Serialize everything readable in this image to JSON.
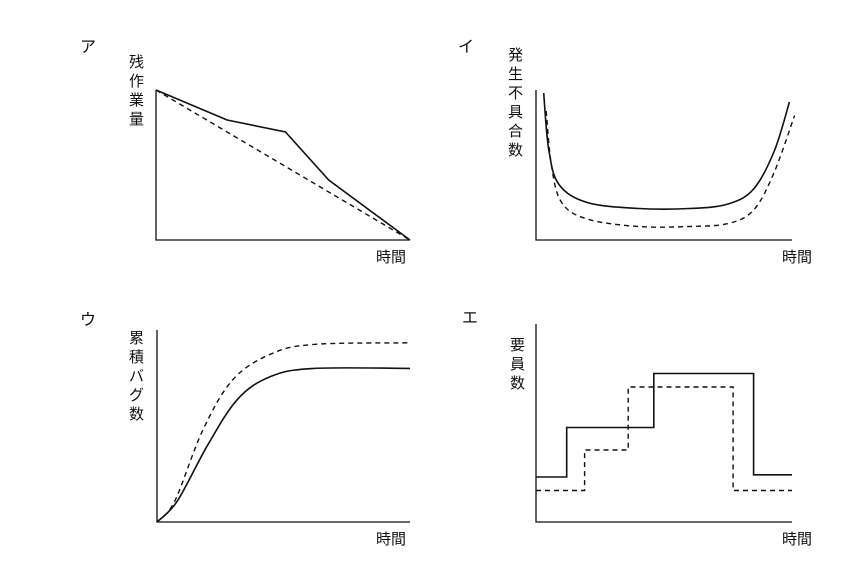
{
  "chart_data": [
    {
      "type": "line",
      "panel_label": "ア",
      "xlabel": "時間",
      "ylabel": "残作業量",
      "series": [
        {
          "style": "solid",
          "points": [
            [
              0,
              100
            ],
            [
              0.28,
              80
            ],
            [
              0.51,
              72
            ],
            [
              0.68,
              40
            ],
            [
              1,
              0
            ]
          ]
        },
        {
          "style": "dashed",
          "points": [
            [
              0,
              100
            ],
            [
              1,
              0
            ]
          ]
        }
      ]
    },
    {
      "type": "line",
      "panel_label": "イ",
      "xlabel": "時間",
      "ylabel": "発生不具合数",
      "series": [
        {
          "style": "solid",
          "points": [
            [
              0.03,
              98
            ],
            [
              0.05,
              60
            ],
            [
              0.09,
              37
            ],
            [
              0.2,
              25
            ],
            [
              0.4,
              21
            ],
            [
              0.6,
              21
            ],
            [
              0.75,
              24
            ],
            [
              0.85,
              34
            ],
            [
              0.93,
              59
            ],
            [
              0.99,
              92
            ]
          ]
        },
        {
          "style": "dashed",
          "points": [
            [
              0.04,
              86
            ],
            [
              0.06,
              50
            ],
            [
              0.1,
              25
            ],
            [
              0.2,
              14
            ],
            [
              0.4,
              9
            ],
            [
              0.6,
              9
            ],
            [
              0.75,
              11
            ],
            [
              0.85,
              20
            ],
            [
              0.93,
              45
            ],
            [
              1.01,
              83
            ]
          ]
        }
      ]
    },
    {
      "type": "line",
      "panel_label": "ウ",
      "xlabel": "時間",
      "ylabel": "累積バグ数",
      "series": [
        {
          "style": "solid",
          "points": [
            [
              0,
              0
            ],
            [
              0.08,
              13
            ],
            [
              0.2,
              48
            ],
            [
              0.32,
              77
            ],
            [
              0.45,
              91
            ],
            [
              0.62,
              96
            ],
            [
              1,
              96
            ]
          ]
        },
        {
          "style": "dashed",
          "points": [
            [
              0,
              0
            ],
            [
              0.07,
              13
            ],
            [
              0.18,
              57
            ],
            [
              0.3,
              89
            ],
            [
              0.45,
              105
            ],
            [
              0.62,
              111
            ],
            [
              1,
              112
            ]
          ]
        }
      ]
    },
    {
      "type": "line",
      "panel_label": "エ",
      "xlabel": "時間",
      "ylabel": "要員数",
      "series": [
        {
          "style": "solid",
          "step": true,
          "points": [
            [
              0,
              1
            ],
            [
              0.12,
              1
            ],
            [
              0.12,
              2.1
            ],
            [
              0.46,
              2.1
            ],
            [
              0.46,
              3.3
            ],
            [
              0.85,
              3.3
            ],
            [
              0.85,
              1.05
            ],
            [
              1,
              1.05
            ]
          ]
        },
        {
          "style": "dashed",
          "step": true,
          "points": [
            [
              0,
              0.7
            ],
            [
              0.19,
              0.7
            ],
            [
              0.19,
              1.6
            ],
            [
              0.36,
              1.6
            ],
            [
              0.36,
              3.0
            ],
            [
              0.77,
              3.0
            ],
            [
              0.77,
              0.7
            ],
            [
              1,
              0.7
            ]
          ]
        }
      ]
    }
  ]
}
